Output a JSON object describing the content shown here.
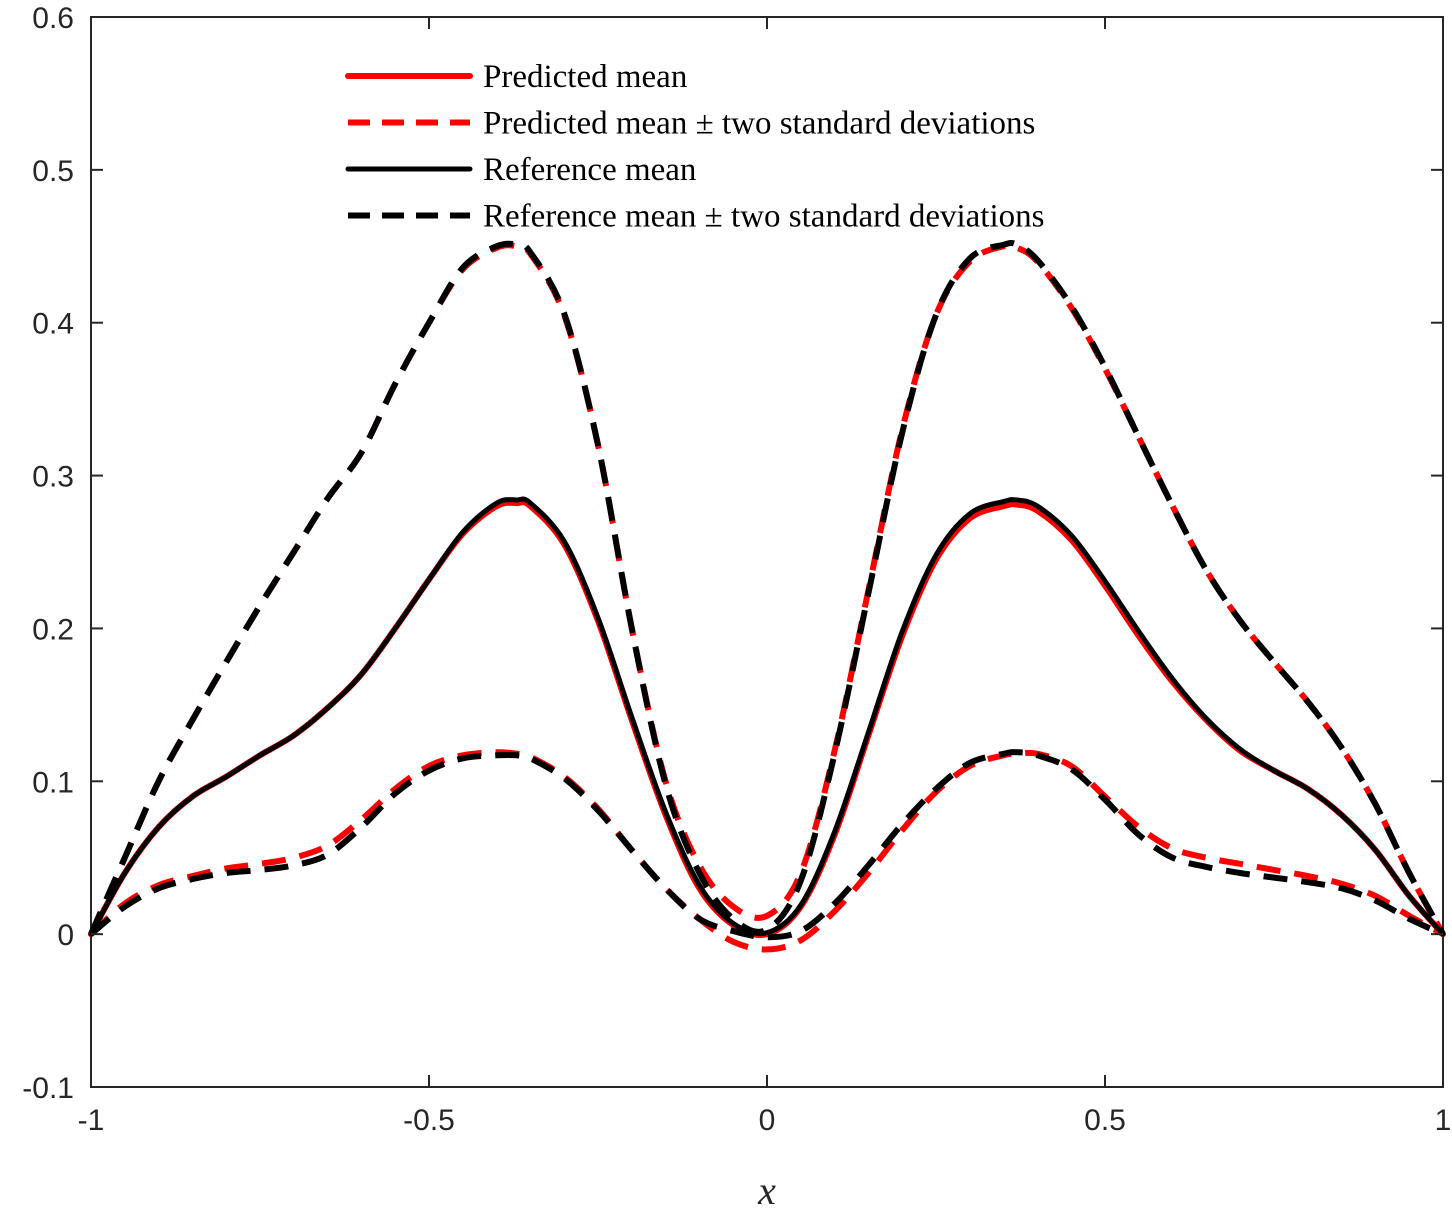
{
  "chart_data": {
    "type": "line",
    "xlabel": "x",
    "ylabel": "",
    "xlim": [
      -1,
      1
    ],
    "ylim": [
      -0.1,
      0.6
    ],
    "xticks": [
      -1,
      -0.5,
      0,
      0.5,
      1
    ],
    "xtick_labels": [
      "-1",
      "-0.5",
      "0",
      "0.5",
      "1"
    ],
    "yticks": [
      -0.1,
      0,
      0.1,
      0.2,
      0.3,
      0.4,
      0.5,
      0.6
    ],
    "ytick_labels": [
      "-0.1",
      "0",
      "0.1",
      "0.2",
      "0.3",
      "0.4",
      "0.5",
      "0.6"
    ],
    "grid": false,
    "legend_position": "top-center",
    "x": [
      -1,
      -0.95,
      -0.9,
      -0.85,
      -0.8,
      -0.75,
      -0.7,
      -0.65,
      -0.6,
      -0.55,
      -0.5,
      -0.45,
      -0.4,
      -0.37,
      -0.35,
      -0.3,
      -0.25,
      -0.2,
      -0.15,
      -0.1,
      -0.05,
      0,
      0.05,
      0.1,
      0.15,
      0.2,
      0.25,
      0.3,
      0.35,
      0.37,
      0.4,
      0.45,
      0.5,
      0.55,
      0.6,
      0.65,
      0.7,
      0.75,
      0.8,
      0.85,
      0.9,
      0.95,
      1
    ],
    "series": [
      {
        "name": "Predicted mean",
        "style": "solid",
        "color": "#ff0000",
        "values": [
          0,
          0.04,
          0.07,
          0.09,
          0.103,
          0.117,
          0.13,
          0.148,
          0.17,
          0.2,
          0.232,
          0.262,
          0.28,
          0.282,
          0.28,
          0.255,
          0.205,
          0.14,
          0.078,
          0.03,
          0.006,
          0,
          0.018,
          0.065,
          0.13,
          0.195,
          0.245,
          0.272,
          0.28,
          0.281,
          0.277,
          0.258,
          0.228,
          0.195,
          0.165,
          0.14,
          0.12,
          0.107,
          0.095,
          0.078,
          0.055,
          0.025,
          0
        ]
      },
      {
        "name": "Predicted mean ± two standard deviations",
        "style": "dashed",
        "color": "#ff0000",
        "values": [
          0,
          0.05,
          0.1,
          0.14,
          0.178,
          0.215,
          0.25,
          0.285,
          0.315,
          0.36,
          0.4,
          0.435,
          0.449,
          0.45,
          0.445,
          0.405,
          0.32,
          0.2,
          0.1,
          0.045,
          0.018,
          0.012,
          0.04,
          0.12,
          0.225,
          0.33,
          0.405,
          0.44,
          0.45,
          0.449,
          0.44,
          0.41,
          0.37,
          0.325,
          0.28,
          0.238,
          0.205,
          0.178,
          0.152,
          0.122,
          0.085,
          0.04,
          0
        ],
        "lower": [
          0,
          0.02,
          0.032,
          0.038,
          0.043,
          0.046,
          0.05,
          0.058,
          0.075,
          0.095,
          0.11,
          0.117,
          0.119,
          0.118,
          0.116,
          0.103,
          0.082,
          0.055,
          0.03,
          0.01,
          -0.005,
          -0.01,
          -0.004,
          0.015,
          0.04,
          0.068,
          0.093,
          0.11,
          0.117,
          0.118,
          0.118,
          0.11,
          0.09,
          0.07,
          0.056,
          0.05,
          0.046,
          0.042,
          0.038,
          0.033,
          0.025,
          0.012,
          0
        ]
      },
      {
        "name": "Reference mean",
        "style": "solid",
        "color": "#000000",
        "values": [
          0,
          0.04,
          0.07,
          0.09,
          0.103,
          0.117,
          0.13,
          0.148,
          0.17,
          0.2,
          0.232,
          0.263,
          0.282,
          0.284,
          0.282,
          0.257,
          0.207,
          0.142,
          0.08,
          0.032,
          0.007,
          0.001,
          0.019,
          0.067,
          0.132,
          0.198,
          0.248,
          0.275,
          0.283,
          0.284,
          0.28,
          0.261,
          0.231,
          0.198,
          0.167,
          0.141,
          0.121,
          0.107,
          0.095,
          0.078,
          0.055,
          0.025,
          0
        ]
      },
      {
        "name": "Reference mean ± two standard deviations",
        "style": "dashed",
        "color": "#000000",
        "values": [
          0,
          0.05,
          0.1,
          0.14,
          0.178,
          0.215,
          0.25,
          0.285,
          0.315,
          0.36,
          0.4,
          0.436,
          0.45,
          0.451,
          0.446,
          0.406,
          0.32,
          0.2,
          0.098,
          0.04,
          0.01,
          0.003,
          0.035,
          0.118,
          0.223,
          0.328,
          0.405,
          0.442,
          0.451,
          0.451,
          0.441,
          0.411,
          0.371,
          0.325,
          0.28,
          0.238,
          0.205,
          0.178,
          0.152,
          0.122,
          0.085,
          0.04,
          0
        ],
        "lower": [
          0,
          0.018,
          0.03,
          0.036,
          0.04,
          0.042,
          0.045,
          0.052,
          0.07,
          0.092,
          0.107,
          0.115,
          0.117,
          0.117,
          0.115,
          0.102,
          0.081,
          0.055,
          0.03,
          0.01,
          0.002,
          -0.002,
          0.002,
          0.02,
          0.045,
          0.072,
          0.095,
          0.112,
          0.118,
          0.119,
          0.117,
          0.108,
          0.088,
          0.065,
          0.05,
          0.044,
          0.04,
          0.037,
          0.034,
          0.03,
          0.022,
          0.01,
          0
        ]
      }
    ]
  }
}
